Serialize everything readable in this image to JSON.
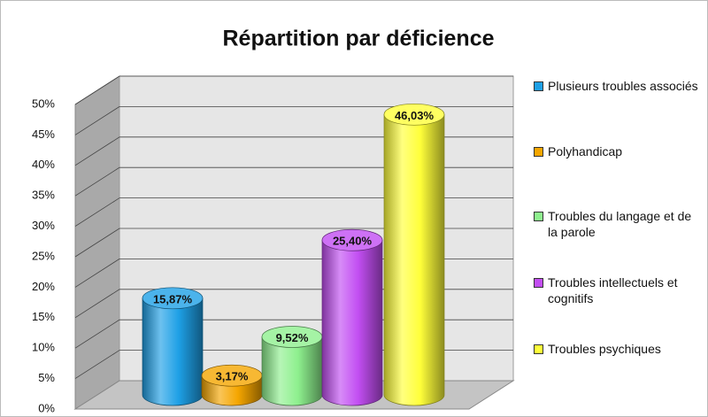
{
  "chart_data": {
    "type": "bar3d",
    "title": "Répartition par déficience",
    "categories": [
      "Plusieurs troubles associés",
      "Polyhandicap",
      "Troubles du langage et de la parole",
      "Troubles intellectuels et cognitifs",
      "Troubles psychiques"
    ],
    "values": [
      15.87,
      3.17,
      9.52,
      25.4,
      46.03
    ],
    "value_labels": [
      "15,87%",
      "3,17%",
      "9,52%",
      "25,40%",
      "46,03%"
    ],
    "colors": [
      "#1ea0e6",
      "#f5a600",
      "#8ef08e",
      "#c24ef2",
      "#ffff3a"
    ],
    "ylim": [
      0,
      50
    ],
    "yticks": [
      {
        "value": 0,
        "label": "0%"
      },
      {
        "value": 5,
        "label": "5%"
      },
      {
        "value": 10,
        "label": "10%"
      },
      {
        "value": 15,
        "label": "15%"
      },
      {
        "value": 20,
        "label": "20%"
      },
      {
        "value": 25,
        "label": "25%"
      },
      {
        "value": 30,
        "label": "30%"
      },
      {
        "value": 35,
        "label": "35%"
      },
      {
        "value": 40,
        "label": "40%"
      },
      {
        "value": 45,
        "label": "45%"
      },
      {
        "value": 50,
        "label": "50%"
      }
    ],
    "grid": true,
    "legend": "right"
  }
}
